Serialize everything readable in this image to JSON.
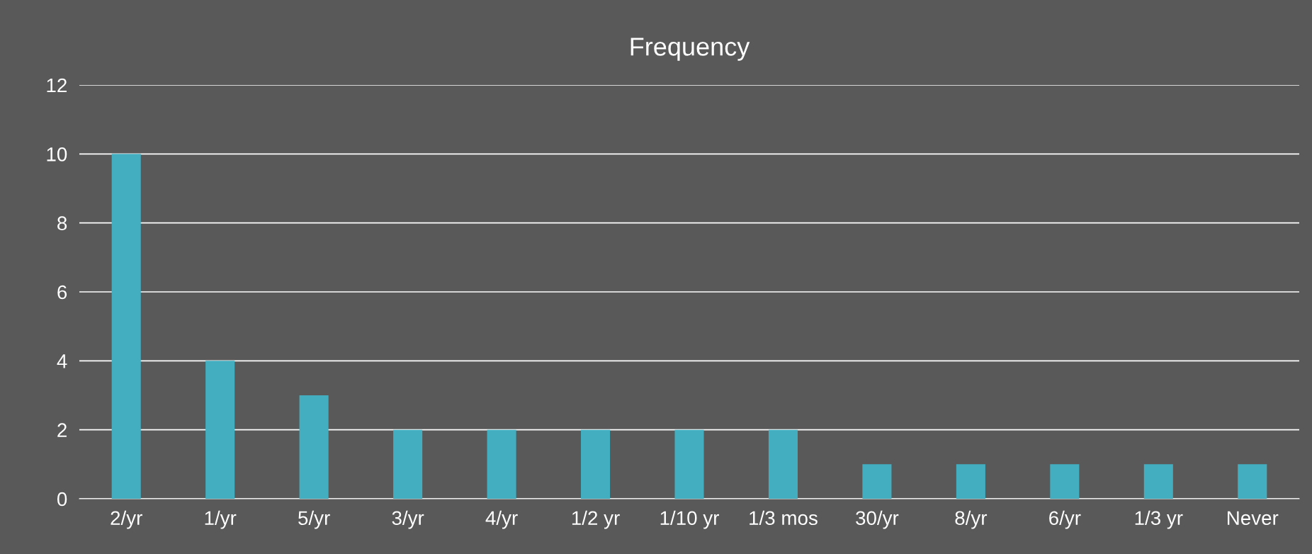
{
  "chart_data": {
    "type": "bar",
    "title": "Frequency",
    "categories": [
      "2/yr",
      "1/yr",
      "5/yr",
      "3/yr",
      "4/yr",
      "1/2 yr",
      "1/10 yr",
      "1/3 mos",
      "30/yr",
      "8/yr",
      "6/yr",
      "1/3 yr",
      "Never"
    ],
    "values": [
      10,
      4,
      3,
      2,
      2,
      2,
      2,
      2,
      1,
      1,
      1,
      1,
      1
    ],
    "color": "#42aec0",
    "ylim": [
      0,
      12
    ],
    "yticks": [
      0,
      2,
      4,
      6,
      8,
      10,
      12
    ],
    "grid": "y",
    "legend": false
  }
}
